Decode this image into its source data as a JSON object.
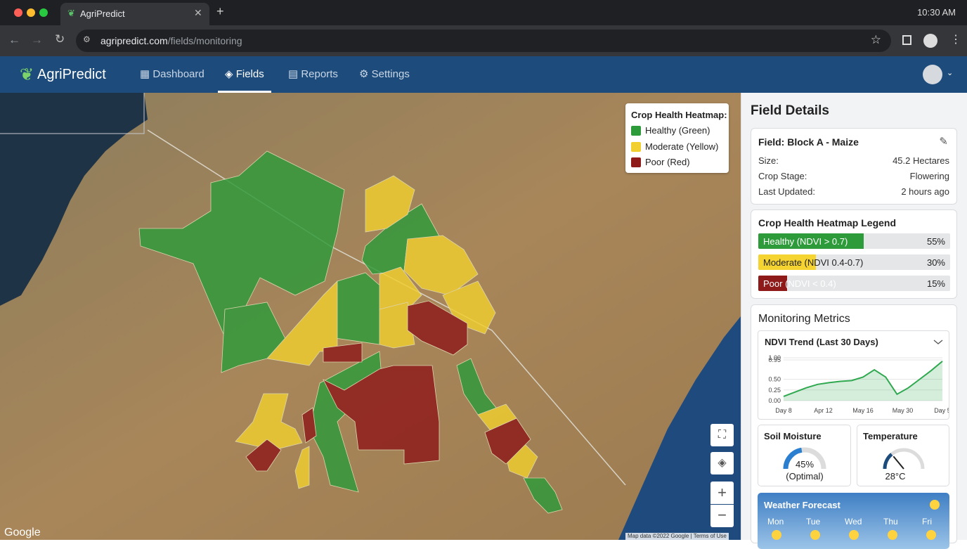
{
  "browser": {
    "tab_title": "AgriPredict",
    "url_host": "agripredict.com",
    "url_path": "/fields/monitoring",
    "clock": "10:30 AM"
  },
  "nav": {
    "brand": "AgriPredict",
    "items": [
      "Dashboard",
      "Fields",
      "Reports",
      "Settings"
    ],
    "active": 1
  },
  "map": {
    "legend_title": "Crop Health Heatmap:",
    "legend": [
      {
        "label": "Healthy (Green)",
        "color": "#2e9b3a"
      },
      {
        "label": "Moderate (Yellow)",
        "color": "#f1cf2f"
      },
      {
        "label": "Poor (Red)",
        "color": "#8e1a1a"
      }
    ],
    "google": "Google",
    "map_data": "Map data ©2022 Google",
    "terms": "Terms of Use"
  },
  "panel": {
    "title": "Field Details",
    "field": {
      "name": "Field: Block A - Maize",
      "rows": [
        [
          "Size:",
          "45.2 Hectares"
        ],
        [
          "Crop Stage:",
          "Flowering"
        ],
        [
          "Last Updated:",
          "2 hours ago"
        ]
      ]
    },
    "health_legend": {
      "title": "Crop Health Heatmap Legend",
      "items": [
        {
          "label": "Healthy (NDVI > 0.7)",
          "value": 55,
          "value_label": "55%",
          "color": "#2e9b3a"
        },
        {
          "label": "Moderate (NDVI 0.4-0.7)",
          "value": 30,
          "value_label": "30%",
          "color": "#f5d432"
        },
        {
          "label": "Poor (NDVI < 0.4)",
          "value": 15,
          "value_label": "15%",
          "color": "#8e1a1a"
        }
      ]
    },
    "metrics": {
      "title": "Monitoring Metrics",
      "ndvi": {
        "title": "NDVI Trend (Last 30 Days)",
        "ylim": [
          0,
          1
        ],
        "yticks": [
          {
            "value": 1,
            "label": "1.00"
          },
          0.95,
          {
            "value": 0.5,
            "label": "0.50"
          },
          0.25,
          {
            "value": 0,
            "label": "0.00"
          }
        ],
        "x_labels": [
          "Day 8",
          "Apr 12",
          "May 16",
          "May 30",
          "Day 5"
        ],
        "values": [
          0.1,
          0.2,
          0.3,
          0.38,
          0.42,
          0.45,
          0.47,
          0.55,
          0.72,
          0.55,
          0.15,
          0.3,
          0.5,
          0.7,
          0.92
        ],
        "color": "#2fa84f"
      },
      "soil": {
        "title": "Soil Moisture",
        "value": 45,
        "value_label": "45%",
        "note": "(Optimal)"
      },
      "temperature": {
        "title": "Temperature",
        "value": 28,
        "value_label": "28°C"
      }
    },
    "weather": {
      "title": "Weather Forecast",
      "days": [
        "Mon",
        "Tue",
        "Wed",
        "Thu",
        "Fri"
      ]
    }
  }
}
